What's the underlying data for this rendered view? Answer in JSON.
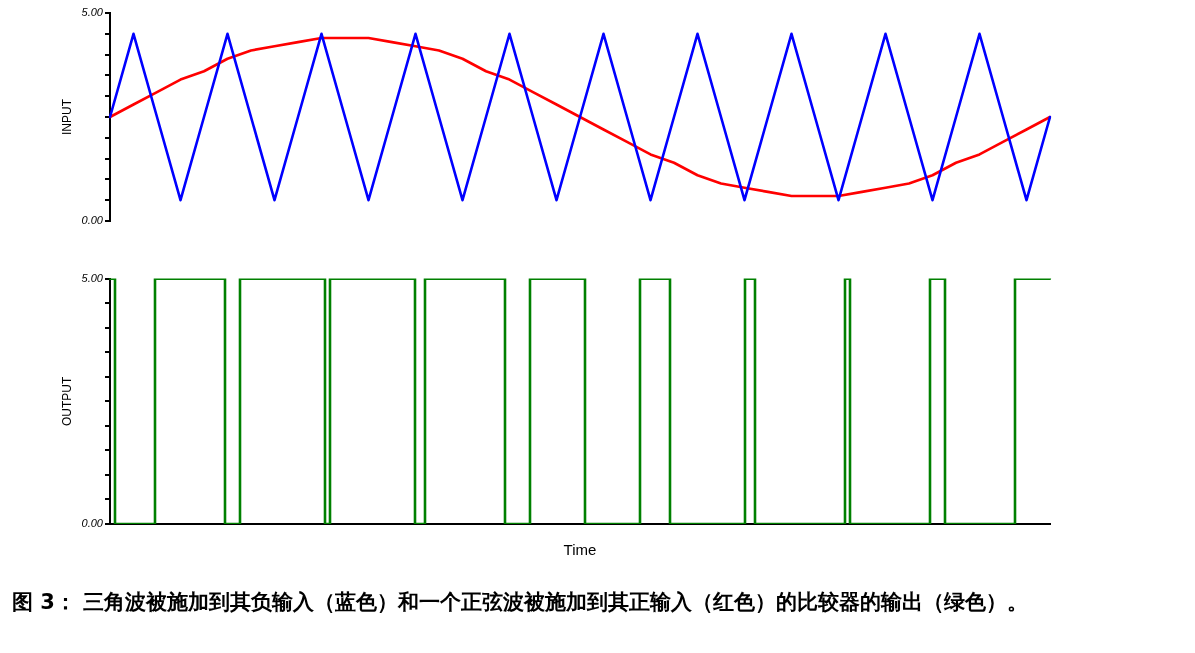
{
  "chart_data": [
    {
      "type": "line",
      "ylabel": "INPUT",
      "tick_labels": "y",
      "grid": false,
      "legend": false,
      "marker": "none",
      "line_style": "solid",
      "categories": [
        null,
        null,
        null,
        null,
        null,
        null,
        null,
        null,
        null,
        null,
        null,
        null,
        null,
        null,
        null,
        null,
        null,
        null,
        null,
        null,
        null,
        null,
        null,
        null,
        null,
        null,
        null,
        null,
        null,
        null,
        null,
        null,
        null,
        null,
        null,
        null,
        null,
        null,
        null,
        null,
        null
      ],
      "ylim": [
        0,
        5
      ],
      "yticks": [
        {
          "value": 0,
          "label": "0.00"
        },
        {
          "value": 0.5,
          "label": null
        },
        {
          "value": 1,
          "label": null
        },
        {
          "value": 1.5,
          "label": null
        },
        {
          "value": 2,
          "label": null
        },
        {
          "value": 2.5,
          "label": null
        },
        {
          "value": 3,
          "label": null
        },
        {
          "value": 3.5,
          "label": null
        },
        {
          "value": 4,
          "label": null
        },
        {
          "value": 4.5,
          "label": null
        },
        {
          "value": 5,
          "label": "5.00"
        }
      ],
      "series": [
        {
          "color": "#0000ff",
          "values": [
            2.5,
            4.5,
            2.5,
            0.5,
            2.5,
            4.5,
            2.5,
            0.5,
            2.5,
            4.5,
            2.5,
            0.5,
            2.5,
            4.5,
            2.5,
            0.5,
            2.5,
            4.5,
            2.5,
            0.5,
            2.5,
            4.5,
            2.5,
            0.5,
            2.5,
            4.5,
            2.5,
            0.5,
            2.5,
            4.5,
            2.5,
            0.5,
            2.5,
            4.5,
            2.5,
            0.5,
            2.5,
            4.5,
            2.5,
            0.5,
            2.5
          ]
        },
        {
          "color": "#ff0000",
          "values": [
            2.5,
            2.8,
            3.1,
            3.4,
            3.6,
            3.9,
            4.1,
            4.2,
            4.3,
            4.4,
            4.4,
            4.4,
            4.3,
            4.2,
            4.1,
            3.9,
            3.6,
            3.4,
            3.1,
            2.8,
            2.5,
            2.2,
            1.9,
            1.6,
            1.4,
            1.1,
            0.9,
            0.8,
            0.7,
            0.6,
            0.6,
            0.6,
            0.7,
            0.8,
            0.9,
            1.1,
            1.4,
            1.6,
            1.9,
            2.2,
            2.5
          ]
        }
      ]
    },
    {
      "type": "step",
      "ylabel": "OUTPUT",
      "xlabel": "Time",
      "tick_labels": "y",
      "grid": false,
      "legend": false,
      "marker": "none",
      "line_style": "solid",
      "categories": [
        null,
        null,
        null,
        null,
        null,
        null,
        null,
        null,
        null,
        null,
        null,
        null,
        null,
        null,
        null,
        null,
        null,
        null,
        null,
        null,
        null,
        null,
        null,
        null,
        null,
        null,
        null,
        null,
        null,
        null,
        null,
        null,
        null,
        null,
        null,
        null,
        null,
        null,
        null,
        null,
        null,
        null,
        null,
        null,
        null,
        null,
        null,
        null,
        null,
        null,
        null,
        null,
        null,
        null,
        null,
        null,
        null,
        null,
        null,
        null,
        null,
        null,
        null,
        null,
        null,
        null,
        null,
        null,
        null,
        null,
        null,
        null,
        null,
        null,
        null,
        null,
        null,
        null,
        null,
        null,
        null,
        null,
        null,
        null,
        null,
        null,
        null,
        null,
        null,
        null,
        null,
        null,
        null,
        null,
        null,
        null,
        null,
        null,
        null,
        null,
        null,
        null,
        null,
        null,
        null,
        null,
        null,
        null,
        null,
        null,
        null,
        null,
        null,
        null,
        null,
        null,
        null,
        null,
        null,
        null,
        null,
        null,
        null,
        null,
        null,
        null,
        null,
        null,
        null,
        null,
        null,
        null,
        null,
        null,
        null,
        null,
        null,
        null,
        null,
        null,
        null,
        null,
        null,
        null,
        null,
        null,
        null,
        null,
        null,
        null,
        null,
        null,
        null,
        null,
        null,
        null,
        null,
        null,
        null,
        null,
        null,
        null,
        null,
        null,
        null,
        null,
        null,
        null,
        null,
        null,
        null,
        null,
        null,
        null,
        null,
        null,
        null,
        null,
        null,
        null,
        null,
        null,
        null,
        null,
        null,
        null,
        null,
        null,
        null
      ],
      "ylim": [
        0,
        5
      ],
      "yticks": [
        {
          "value": 0,
          "label": "0.00"
        },
        {
          "value": 0.5,
          "label": null
        },
        {
          "value": 1,
          "label": null
        },
        {
          "value": 1.5,
          "label": null
        },
        {
          "value": 2,
          "label": null
        },
        {
          "value": 2.5,
          "label": null
        },
        {
          "value": 3,
          "label": null
        },
        {
          "value": 3.5,
          "label": null
        },
        {
          "value": 4,
          "label": null
        },
        {
          "value": 4.5,
          "label": null
        },
        {
          "value": 5,
          "label": "5.00"
        }
      ],
      "series": [
        {
          "color": "#008000",
          "values": [
            5,
            0,
            0,
            0,
            0,
            0,
            0,
            0,
            0,
            5,
            5,
            5,
            5,
            5,
            5,
            5,
            5,
            5,
            5,
            5,
            5,
            5,
            5,
            0,
            0,
            0,
            5,
            5,
            5,
            5,
            5,
            5,
            5,
            5,
            5,
            5,
            5,
            5,
            5,
            5,
            5,
            5,
            5,
            0,
            5,
            5,
            5,
            5,
            5,
            5,
            5,
            5,
            5,
            5,
            5,
            5,
            5,
            5,
            5,
            5,
            5,
            0,
            0,
            5,
            5,
            5,
            5,
            5,
            5,
            5,
            5,
            5,
            5,
            5,
            5,
            5,
            5,
            5,
            5,
            0,
            0,
            0,
            0,
            0,
            5,
            5,
            5,
            5,
            5,
            5,
            5,
            5,
            5,
            5,
            5,
            0,
            0,
            0,
            0,
            0,
            0,
            0,
            0,
            0,
            0,
            0,
            5,
            5,
            5,
            5,
            5,
            5,
            0,
            0,
            0,
            0,
            0,
            0,
            0,
            0,
            0,
            0,
            0,
            0,
            0,
            0,
            0,
            5,
            5,
            0,
            0,
            0,
            0,
            0,
            0,
            0,
            0,
            0,
            0,
            0,
            0,
            0,
            0,
            0,
            0,
            0,
            0,
            5,
            0,
            0,
            0,
            0,
            0,
            0,
            0,
            0,
            0,
            0,
            0,
            0,
            0,
            0,
            0,
            0,
            5,
            5,
            5,
            0,
            0,
            0,
            0,
            0,
            0,
            0,
            0,
            0,
            0,
            0,
            0,
            0,
            0,
            5,
            5,
            5,
            5,
            5,
            5,
            5,
            5
          ]
        }
      ],
      "annotations": [
        "图 3： 三角波被施加到其负输入（蓝色）和一个正弦波被施加到其正输入（红色）的比较器的输出（绿色）。"
      ]
    }
  ]
}
